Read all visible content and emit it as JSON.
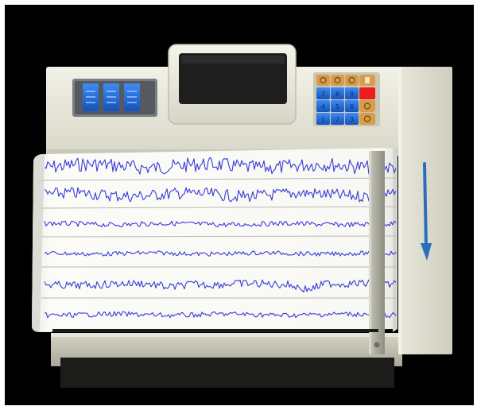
{
  "scene": {
    "subject": "EEG chart recorder",
    "colors": {
      "background": "#000000",
      "housing": "#e9e8dc",
      "housing_shadow": "#b8b7a8",
      "screen": "#1e1e1e",
      "key_blue": "#1f6fe0",
      "key_orange": "#d99c48",
      "key_red": "#ee1c1c",
      "trace": "#3a3ad8",
      "paper": "#f7f7f3",
      "arrow": "#2a6fbf"
    },
    "display_windows": 3,
    "keypad": {
      "top_row": [
        "◯",
        "◯",
        "◯",
        "▯"
      ],
      "rows": [
        [
          "7",
          "8",
          "9"
        ],
        [
          "4",
          "5",
          "6"
        ],
        [
          "1",
          "2",
          "3"
        ]
      ],
      "side_keys": [
        "■",
        "◯",
        "◯"
      ]
    },
    "traces": [
      {
        "amplitude": 1.0,
        "baseline": 0
      },
      {
        "amplitude": 0.85,
        "baseline": 1
      },
      {
        "amplitude": 0.35,
        "baseline": 2
      },
      {
        "amplitude": 0.3,
        "baseline": 3
      },
      {
        "amplitude": 0.55,
        "baseline": 4
      },
      {
        "amplitude": 0.35,
        "baseline": 5
      }
    ],
    "feed_arrow_direction": "down"
  }
}
